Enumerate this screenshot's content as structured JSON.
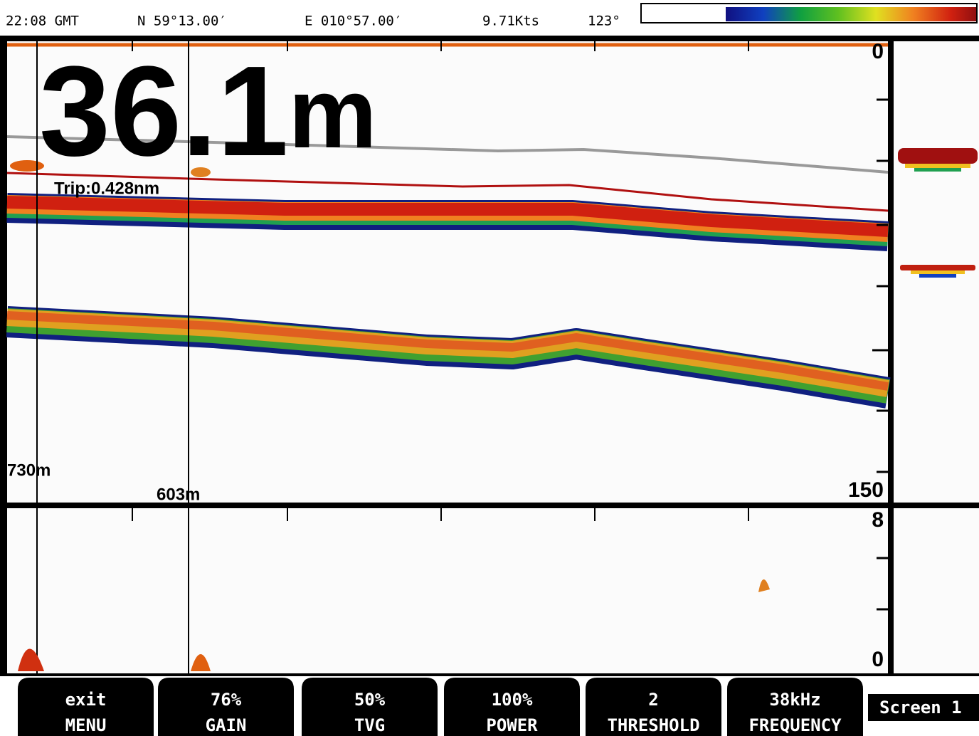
{
  "status": {
    "time": "22:08 GMT",
    "latitude": "N 59°13.00′",
    "longitude": "E 010°57.00′",
    "speed": "9.71Kts",
    "heading": "123°"
  },
  "depth": {
    "value": "36.1",
    "unit": "m"
  },
  "trip": "Trip:0.428nm",
  "markers": [
    "730m",
    "603m"
  ],
  "main_scale": {
    "top": "0",
    "bottom": "150"
  },
  "lower_scale": {
    "top": "8",
    "bottom": "0"
  },
  "buttons": [
    {
      "value": "exit",
      "label": "MENU"
    },
    {
      "value": "76%",
      "label": "GAIN"
    },
    {
      "value": "50%",
      "label": "TVG"
    },
    {
      "value": "100%",
      "label": "POWER"
    },
    {
      "value": "2",
      "label": "THRESHOLD"
    },
    {
      "value": "38kHz",
      "label": "FREQUENCY"
    }
  ],
  "screen": "Screen 1"
}
